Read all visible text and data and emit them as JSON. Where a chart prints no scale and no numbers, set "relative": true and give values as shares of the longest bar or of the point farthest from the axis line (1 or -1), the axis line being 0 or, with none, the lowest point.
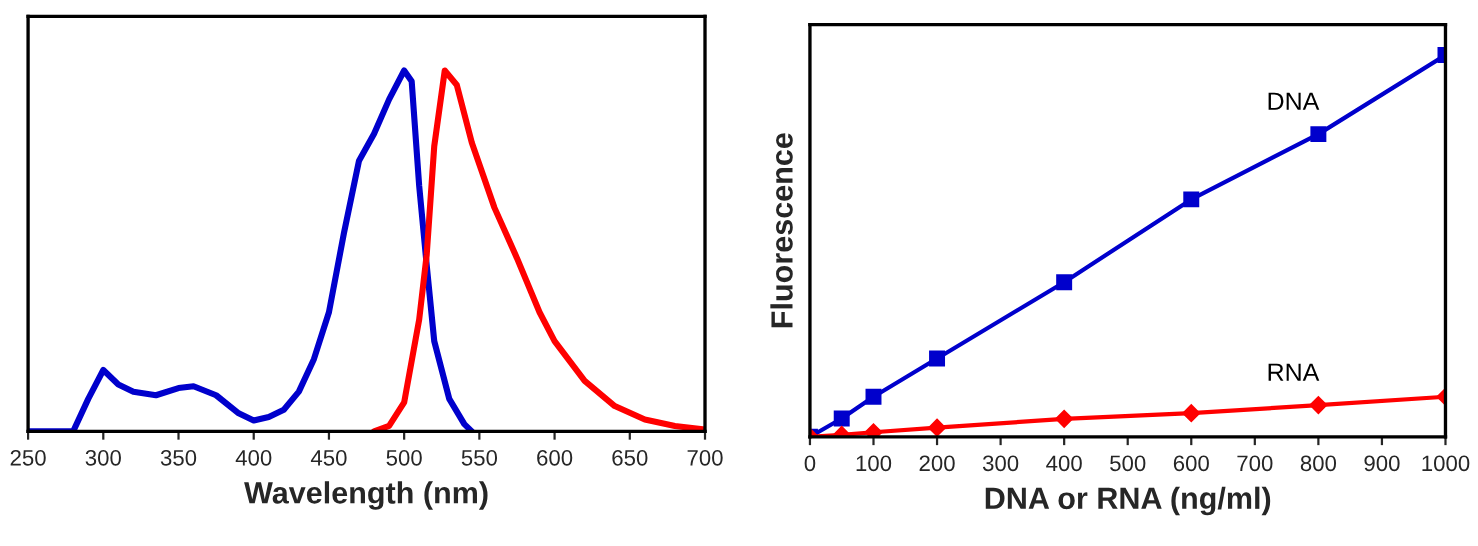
{
  "chart_data": [
    {
      "type": "line",
      "xlabel": "Wavelength (nm)",
      "relative": true,
      "xlim": [
        250,
        700
      ],
      "xticks": [
        250,
        300,
        350,
        400,
        450,
        500,
        550,
        600,
        650,
        700
      ],
      "tick_labels": "x",
      "grid": false,
      "legend": false,
      "marker": "none",
      "line_style": "solid",
      "series": [
        {
          "color": "#0000cc",
          "x": [
            250,
            280,
            290,
            300,
            310,
            320,
            335,
            350,
            360,
            375,
            390,
            400,
            410,
            420,
            430,
            440,
            450,
            460,
            470,
            480,
            490,
            500,
            505,
            510,
            515,
            520,
            530,
            540,
            545
          ],
          "values": [
            0,
            0,
            0.09,
            0.17,
            0.13,
            0.11,
            0.1,
            0.12,
            0.125,
            0.1,
            0.05,
            0.03,
            0.04,
            0.06,
            0.11,
            0.2,
            0.33,
            0.55,
            0.75,
            0.825,
            0.92,
            1.0,
            0.97,
            0.68,
            0.46,
            0.25,
            0.09,
            0.02,
            0
          ]
        },
        {
          "color": "#ff0000",
          "x": [
            480,
            490,
            500,
            510,
            515,
            520,
            527,
            535,
            545,
            560,
            575,
            590,
            600,
            620,
            640,
            660,
            680,
            700
          ],
          "values": [
            0,
            0.015,
            0.08,
            0.31,
            0.49,
            0.79,
            1.0,
            0.96,
            0.8,
            0.62,
            0.48,
            0.33,
            0.25,
            0.14,
            0.07,
            0.033,
            0.015,
            0.005
          ]
        }
      ]
    },
    {
      "type": "line",
      "xlabel": "DNA or RNA (ng/ml)",
      "ylabel": "Fluorescence",
      "relative": true,
      "xlim": [
        0,
        1000
      ],
      "xticks": [
        0,
        100,
        200,
        300,
        400,
        500,
        600,
        700,
        800,
        900,
        1000
      ],
      "tick_labels": "x",
      "grid": false,
      "legend": false,
      "line_style": "solid",
      "series": [
        {
          "name": "DNA",
          "color": "#0000cc",
          "marker": "square",
          "x": [
            0,
            50,
            100,
            200,
            400,
            600,
            800,
            1000
          ],
          "values": [
            0,
            0.048,
            0.105,
            0.205,
            0.405,
            0.622,
            0.793,
            1.0
          ]
        },
        {
          "name": "RNA",
          "color": "#ff0000",
          "marker": "diamond",
          "x": [
            0,
            50,
            100,
            200,
            400,
            600,
            800,
            1000
          ],
          "values": [
            0,
            0.005,
            0.012,
            0.024,
            0.047,
            0.062,
            0.083,
            0.105
          ]
        }
      ]
    }
  ]
}
